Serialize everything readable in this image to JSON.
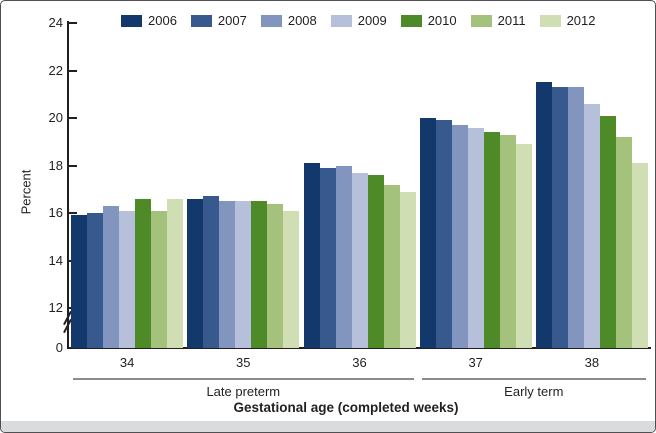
{
  "chart_data": {
    "type": "bar",
    "title": "",
    "ylabel": "Percent",
    "xlabel": "Gestational age (completed weeks)",
    "y_ticks": [
      24,
      22,
      20,
      18,
      16,
      14,
      12,
      0
    ],
    "y_axis_break_between": [
      0,
      12
    ],
    "ylim_display": [
      12,
      24
    ],
    "grid": "off",
    "legend_position": "top",
    "categories": [
      "34",
      "35",
      "36",
      "37",
      "38"
    ],
    "category_spans": [
      {
        "label": "Late preterm",
        "categories": [
          "34",
          "35",
          "36"
        ]
      },
      {
        "label": "Early term",
        "categories": [
          "37",
          "38"
        ]
      }
    ],
    "series": [
      {
        "name": "2006",
        "color": "#13386b",
        "values": [
          15.9,
          16.6,
          18.1,
          20.0,
          21.5
        ]
      },
      {
        "name": "2007",
        "color": "#38598e",
        "values": [
          16.0,
          16.7,
          17.9,
          19.9,
          21.3
        ]
      },
      {
        "name": "2008",
        "color": "#8195be",
        "values": [
          16.3,
          16.5,
          18.0,
          19.7,
          21.3
        ]
      },
      {
        "name": "2009",
        "color": "#b6c0da",
        "values": [
          16.1,
          16.5,
          17.7,
          19.6,
          20.6
        ]
      },
      {
        "name": "2010",
        "color": "#4f8a28",
        "values": [
          16.6,
          16.5,
          17.6,
          19.4,
          20.1
        ]
      },
      {
        "name": "2011",
        "color": "#a5c27c",
        "values": [
          16.1,
          16.4,
          17.2,
          19.3,
          19.2
        ]
      },
      {
        "name": "2012",
        "color": "#cfdfb3",
        "values": [
          16.6,
          16.1,
          16.9,
          18.9,
          18.1
        ]
      }
    ]
  }
}
